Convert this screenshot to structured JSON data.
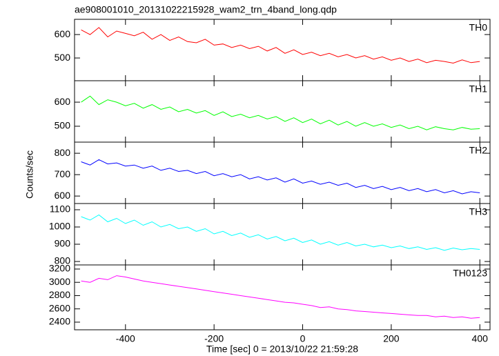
{
  "title": "ae908001010_20131022215928_wam2_trn_4band_long.qdp",
  "xlabel": "Time [sec] 0 = 2013/10/22 21:59:28",
  "ylabel": "Counts/sec",
  "chart_data": [
    {
      "type": "line",
      "label": "TH0",
      "color": "#ff0000",
      "x": [
        -500,
        -480,
        -460,
        -440,
        -420,
        -400,
        -380,
        -360,
        -340,
        -320,
        -300,
        -280,
        -260,
        -240,
        -220,
        -200,
        -180,
        -160,
        -140,
        -120,
        -100,
        -80,
        -60,
        -40,
        -20,
        0,
        20,
        40,
        60,
        80,
        100,
        120,
        140,
        160,
        180,
        200,
        220,
        240,
        260,
        280,
        300,
        320,
        340,
        360,
        380,
        400
      ],
      "values": [
        620,
        600,
        630,
        590,
        615,
        605,
        595,
        610,
        580,
        600,
        575,
        590,
        570,
        565,
        580,
        555,
        560,
        545,
        555,
        540,
        550,
        530,
        545,
        520,
        535,
        515,
        525,
        510,
        520,
        505,
        515,
        500,
        510,
        495,
        505,
        490,
        500,
        485,
        495,
        480,
        490,
        485,
        478,
        492,
        480,
        485
      ],
      "xlim": [
        -515,
        423
      ],
      "xticks": [
        -400,
        -200,
        0,
        200,
        400
      ],
      "ylim": [
        403,
        665
      ],
      "yticks": [
        500,
        600
      ]
    },
    {
      "type": "line",
      "label": "TH1",
      "color": "#00ff00",
      "x": [
        -500,
        -480,
        -460,
        -440,
        -420,
        -400,
        -380,
        -360,
        -340,
        -320,
        -300,
        -280,
        -260,
        -240,
        -220,
        -200,
        -180,
        -160,
        -140,
        -120,
        -100,
        -80,
        -60,
        -40,
        -20,
        0,
        20,
        40,
        60,
        80,
        100,
        120,
        140,
        160,
        180,
        200,
        220,
        240,
        260,
        280,
        300,
        320,
        340,
        360,
        380,
        400
      ],
      "values": [
        600,
        625,
        590,
        610,
        600,
        585,
        595,
        575,
        590,
        570,
        580,
        560,
        570,
        555,
        565,
        545,
        560,
        540,
        550,
        535,
        545,
        530,
        540,
        520,
        535,
        515,
        530,
        510,
        525,
        505,
        520,
        500,
        515,
        500,
        510,
        495,
        505,
        490,
        500,
        485,
        498,
        490,
        485,
        495,
        488,
        490
      ],
      "xlim": [
        -515,
        423
      ],
      "xticks": [
        -400,
        -200,
        0,
        200,
        400
      ],
      "ylim": [
        434,
        689
      ],
      "yticks": [
        500,
        600
      ]
    },
    {
      "type": "line",
      "label": "TH2",
      "color": "#0000ff",
      "x": [
        -500,
        -480,
        -460,
        -440,
        -420,
        -400,
        -380,
        -360,
        -340,
        -320,
        -300,
        -280,
        -260,
        -240,
        -220,
        -200,
        -180,
        -160,
        -140,
        -120,
        -100,
        -80,
        -60,
        -40,
        -20,
        0,
        20,
        40,
        60,
        80,
        100,
        120,
        140,
        160,
        180,
        200,
        220,
        240,
        260,
        280,
        300,
        320,
        340,
        360,
        380,
        400
      ],
      "values": [
        760,
        745,
        770,
        750,
        755,
        740,
        745,
        730,
        740,
        720,
        730,
        715,
        720,
        705,
        715,
        695,
        705,
        690,
        700,
        680,
        690,
        675,
        685,
        665,
        680,
        660,
        670,
        655,
        665,
        650,
        660,
        640,
        650,
        635,
        645,
        630,
        640,
        625,
        635,
        620,
        630,
        615,
        625,
        610,
        620,
        615
      ],
      "xlim": [
        -515,
        423
      ],
      "xticks": [
        -400,
        -200,
        0,
        200,
        400
      ],
      "ylim": [
        565,
        852
      ],
      "yticks": [
        600,
        700,
        800
      ]
    },
    {
      "type": "line",
      "label": "TH3",
      "color": "#00ffff",
      "x": [
        -500,
        -480,
        -460,
        -440,
        -420,
        -400,
        -380,
        -360,
        -340,
        -320,
        -300,
        -280,
        -260,
        -240,
        -220,
        -200,
        -180,
        -160,
        -140,
        -120,
        -100,
        -80,
        -60,
        -40,
        -20,
        0,
        20,
        40,
        60,
        80,
        100,
        120,
        140,
        160,
        180,
        200,
        220,
        240,
        260,
        280,
        300,
        320,
        340,
        360,
        380,
        400
      ],
      "values": [
        1060,
        1040,
        1070,
        1030,
        1050,
        1020,
        1040,
        1010,
        1030,
        1000,
        1015,
        990,
        1000,
        975,
        990,
        960,
        975,
        950,
        965,
        940,
        955,
        930,
        945,
        920,
        935,
        910,
        925,
        900,
        915,
        895,
        910,
        890,
        900,
        885,
        895,
        880,
        890,
        875,
        885,
        870,
        880,
        865,
        878,
        868,
        875,
        870
      ],
      "xlim": [
        -515,
        423
      ],
      "xticks": [
        -400,
        -200,
        0,
        200,
        400
      ],
      "ylim": [
        780,
        1136
      ],
      "yticks": [
        800,
        900,
        1000,
        1100
      ]
    },
    {
      "type": "line",
      "label": "TH0123",
      "color": "#ff00ff",
      "x": [
        -500,
        -480,
        -460,
        -440,
        -420,
        -400,
        -380,
        -360,
        -340,
        -320,
        -300,
        -280,
        -260,
        -240,
        -220,
        -200,
        -180,
        -160,
        -140,
        -120,
        -100,
        -80,
        -60,
        -40,
        -20,
        0,
        20,
        40,
        60,
        80,
        100,
        120,
        140,
        160,
        180,
        200,
        220,
        240,
        260,
        280,
        300,
        320,
        340,
        360,
        380,
        400
      ],
      "values": [
        3020,
        3000,
        3060,
        3040,
        3100,
        3080,
        3050,
        3020,
        3000,
        2980,
        2960,
        2940,
        2920,
        2900,
        2880,
        2860,
        2840,
        2820,
        2800,
        2780,
        2760,
        2740,
        2720,
        2700,
        2690,
        2670,
        2650,
        2620,
        2630,
        2600,
        2590,
        2570,
        2560,
        2550,
        2540,
        2530,
        2520,
        2510,
        2500,
        2500,
        2480,
        2490,
        2470,
        2480,
        2460,
        2470
      ],
      "xlim": [
        -515,
        423
      ],
      "xticks": [
        -400,
        -200,
        0,
        200,
        400
      ],
      "xtick_labels": true,
      "ylim": [
        2285,
        3262
      ],
      "yticks": [
        2400,
        2600,
        2800,
        3000,
        3200
      ]
    }
  ]
}
